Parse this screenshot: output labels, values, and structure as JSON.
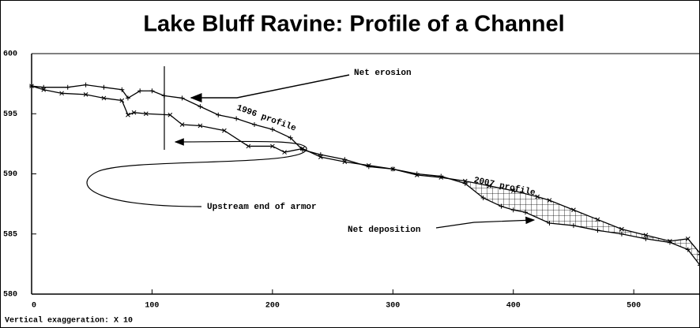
{
  "chart_data": {
    "type": "line",
    "title": "Lake Bluff Ravine: Profile of a Channel",
    "xlim": [
      0,
      555
    ],
    "xticks": [
      0,
      100,
      200,
      300,
      400,
      500
    ],
    "ylim": [
      580,
      600
    ],
    "yticks": [
      580,
      585,
      590,
      595,
      600
    ],
    "series": [
      {
        "name": "1996 profile",
        "color": "#000000",
        "x": [
          0,
          10,
          30,
          45,
          60,
          75,
          80,
          90,
          100,
          110,
          125,
          140,
          155,
          170,
          185,
          200,
          215,
          225,
          240,
          260,
          280,
          300,
          320,
          340,
          360,
          375,
          390,
          400,
          410,
          430,
          450,
          470,
          490,
          510,
          530,
          545,
          555
        ],
        "values": [
          597.3,
          597.2,
          597.2,
          597.4,
          597.2,
          597.0,
          596.3,
          596.9,
          596.9,
          596.5,
          596.3,
          595.6,
          594.9,
          594.6,
          594.1,
          593.7,
          593.0,
          592.0,
          591.6,
          591.2,
          590.6,
          590.4,
          590.0,
          589.8,
          589.2,
          588.0,
          587.3,
          587.0,
          586.8,
          585.9,
          585.7,
          585.3,
          585.0,
          584.6,
          584.3,
          583.7,
          582.4
        ]
      },
      {
        "name": "2007 profile",
        "color": "#000000",
        "x": [
          0,
          10,
          25,
          45,
          60,
          75,
          80,
          85,
          95,
          115,
          125,
          140,
          160,
          180,
          200,
          210,
          225,
          240,
          260,
          280,
          300,
          320,
          340,
          360,
          380,
          400,
          420,
          430,
          450,
          470,
          490,
          510,
          530,
          545,
          555
        ],
        "values": [
          597.3,
          597.0,
          596.7,
          596.6,
          596.3,
          596.1,
          594.9,
          595.1,
          595.0,
          594.9,
          594.1,
          594.0,
          593.6,
          592.3,
          592.3,
          591.8,
          592.1,
          591.4,
          591.0,
          590.7,
          590.4,
          589.9,
          589.7,
          589.4,
          589.0,
          588.6,
          588.1,
          587.8,
          587.0,
          586.2,
          585.4,
          584.9,
          584.4,
          584.6,
          583.4
        ]
      }
    ],
    "annotations": [
      "Net erosion",
      "Upstream end of armor",
      "Net deposition",
      "Vertical exaggeration: X 10"
    ]
  }
}
